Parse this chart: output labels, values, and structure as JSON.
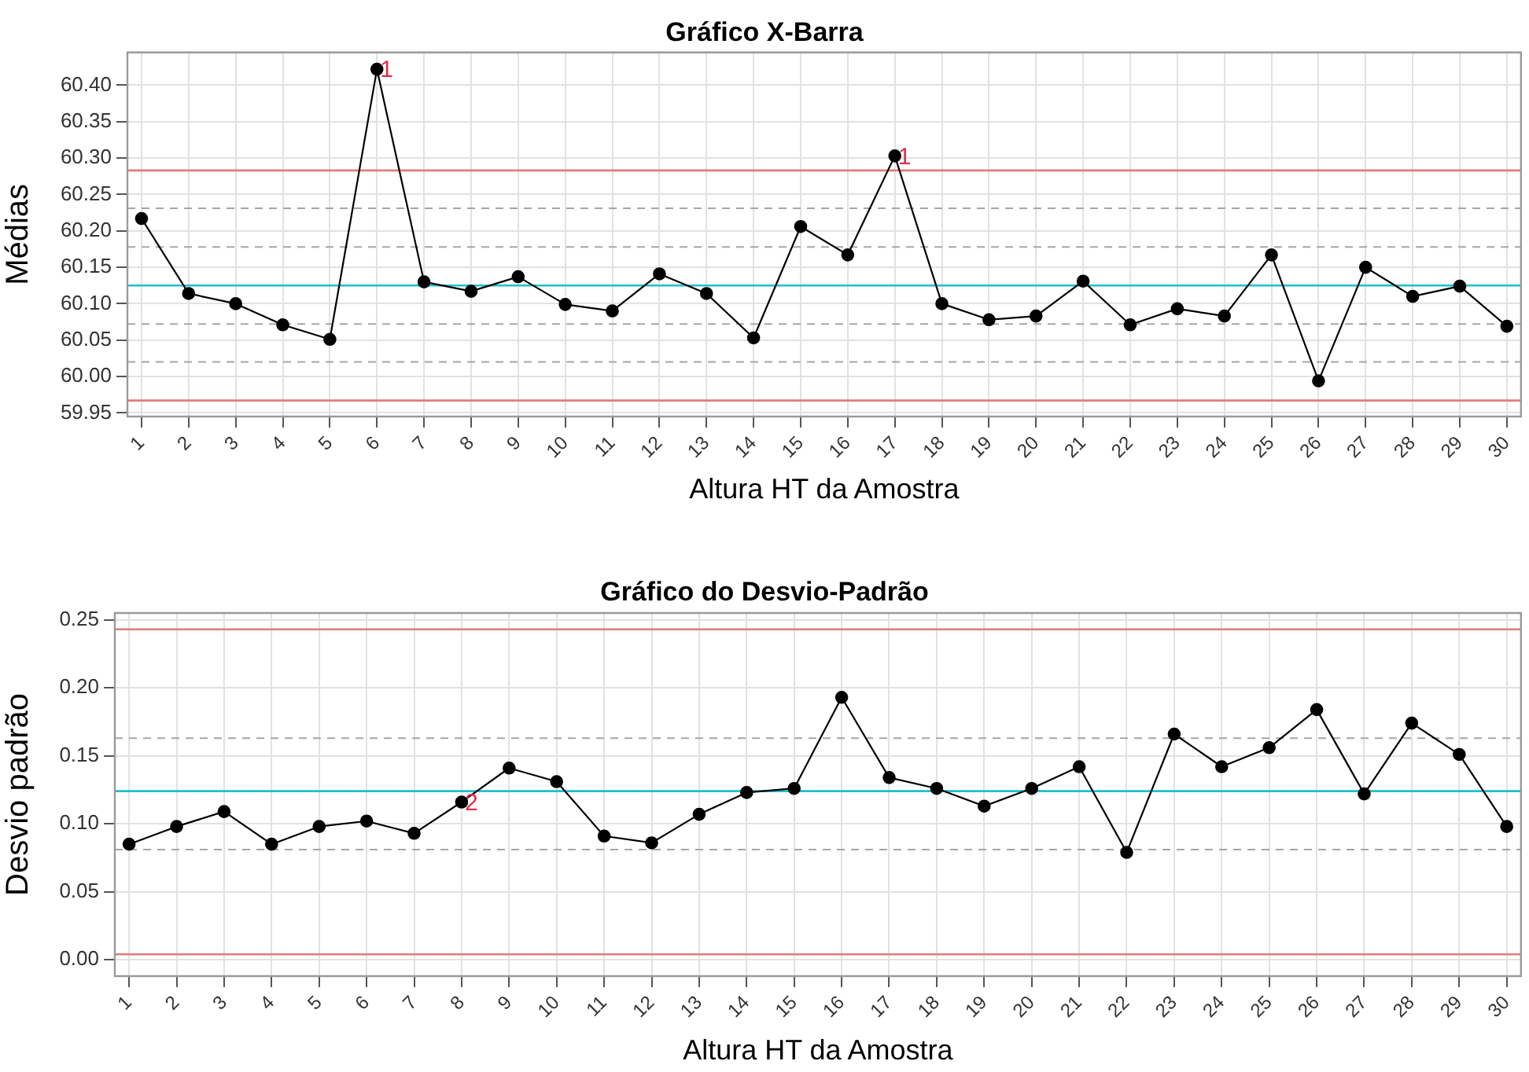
{
  "chart_data": [
    {
      "type": "line",
      "title": "Gráfico X-Barra",
      "xlabel": "Altura HT da Amostra",
      "ylabel": "Médias",
      "x": [
        1,
        2,
        3,
        4,
        5,
        6,
        7,
        8,
        9,
        10,
        11,
        12,
        13,
        14,
        15,
        16,
        17,
        18,
        19,
        20,
        21,
        22,
        23,
        24,
        25,
        26,
        27,
        28,
        29,
        30
      ],
      "values": [
        60.217,
        60.114,
        60.1,
        60.071,
        60.051,
        60.422,
        60.13,
        60.117,
        60.137,
        60.099,
        60.09,
        60.141,
        60.114,
        60.053,
        60.206,
        60.167,
        60.303,
        60.1,
        60.078,
        60.083,
        60.131,
        60.071,
        60.093,
        60.083,
        60.167,
        59.994,
        60.15,
        60.11,
        60.124,
        60.069
      ],
      "color": "#000000",
      "marker": "circle",
      "xlim": [
        0.7,
        30.3
      ],
      "xticks": [
        1,
        2,
        3,
        4,
        5,
        6,
        7,
        8,
        9,
        10,
        11,
        12,
        13,
        14,
        15,
        16,
        17,
        18,
        19,
        20,
        21,
        22,
        23,
        24,
        25,
        26,
        27,
        28,
        29,
        30
      ],
      "ylim": [
        59.945,
        60.445
      ],
      "yticks": [
        59.95,
        {
          "value": 60,
          "label": "60.00"
        },
        60.05,
        {
          "value": 60.1,
          "label": "60.10"
        },
        60.15,
        {
          "value": 60.2,
          "label": "60.20"
        },
        60.25,
        {
          "value": 60.3,
          "label": "60.30"
        },
        60.35,
        {
          "value": 60.4,
          "label": "60.40"
        }
      ],
      "ref_lines": [
        {
          "axis": "y",
          "value": 60.283,
          "color": "#e07c7c"
        },
        {
          "axis": "y",
          "value": 59.967,
          "color": "#e07c7c"
        },
        {
          "axis": "y",
          "value": 60.125,
          "color": "#1cc1c9"
        },
        {
          "axis": "y",
          "value": 60.231,
          "color": "#a6a6a6",
          "line_style": "dashed"
        },
        {
          "axis": "y",
          "value": 60.178,
          "color": "#a6a6a6",
          "line_style": "dashed"
        },
        {
          "axis": "y",
          "value": 60.072,
          "color": "#a6a6a6",
          "line_style": "dashed"
        },
        {
          "axis": "y",
          "value": 60.02,
          "color": "#a6a6a6",
          "line_style": "dashed"
        }
      ],
      "annotations": [
        {
          "text": "1",
          "x": 6,
          "y": 60.422
        },
        {
          "text": "1",
          "x": 17,
          "y": 60.303
        }
      ],
      "grid": true
    },
    {
      "type": "line",
      "title": "Gráfico do Desvio-Padrão",
      "xlabel": "Altura HT da Amostra",
      "ylabel": "Desvio padrão",
      "x": [
        1,
        2,
        3,
        4,
        5,
        6,
        7,
        8,
        9,
        10,
        11,
        12,
        13,
        14,
        15,
        16,
        17,
        18,
        19,
        20,
        21,
        22,
        23,
        24,
        25,
        26,
        27,
        28,
        29,
        30
      ],
      "values": [
        0.085,
        0.098,
        0.109,
        0.085,
        0.098,
        0.102,
        0.093,
        0.116,
        0.141,
        0.131,
        0.091,
        0.086,
        0.107,
        0.123,
        0.126,
        0.193,
        0.134,
        0.126,
        0.113,
        0.126,
        0.142,
        0.079,
        0.166,
        0.142,
        0.156,
        0.184,
        0.122,
        0.174,
        0.151,
        0.098
      ],
      "color": "#000000",
      "marker": "circle",
      "xlim": [
        0.7,
        30.3
      ],
      "xticks": [
        1,
        2,
        3,
        4,
        5,
        6,
        7,
        8,
        9,
        10,
        11,
        12,
        13,
        14,
        15,
        16,
        17,
        18,
        19,
        20,
        21,
        22,
        23,
        24,
        25,
        26,
        27,
        28,
        29,
        30
      ],
      "ylim": [
        -0.012,
        0.255
      ],
      "yticks": [
        {
          "value": 0,
          "label": "0.00"
        },
        0.05,
        {
          "value": 0.1,
          "label": "0.10"
        },
        0.15,
        {
          "value": 0.2,
          "label": "0.20"
        },
        0.25
      ],
      "ref_lines": [
        {
          "axis": "y",
          "value": 0.243,
          "color": "#e07c7c"
        },
        {
          "axis": "y",
          "value": 0.004,
          "color": "#e07c7c"
        },
        {
          "axis": "y",
          "value": 0.124,
          "color": "#1cc1c9"
        },
        {
          "axis": "y",
          "value": 0.163,
          "color": "#a6a6a6",
          "line_style": "dashed"
        },
        {
          "axis": "y",
          "value": 0.081,
          "color": "#a6a6a6",
          "line_style": "dashed"
        }
      ],
      "annotations": [
        {
          "text": "2",
          "x": 8,
          "y": 0.116
        }
      ],
      "grid": true
    }
  ]
}
